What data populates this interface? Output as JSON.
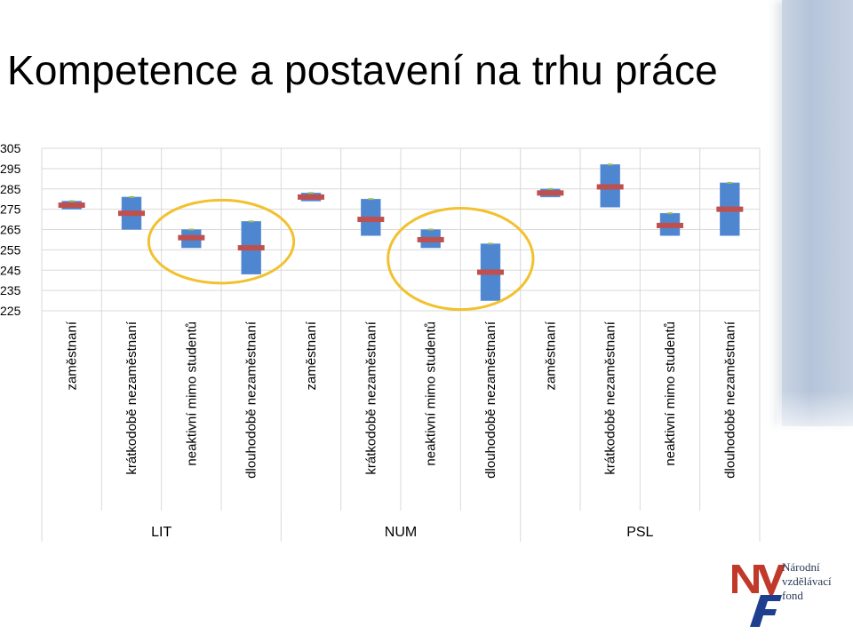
{
  "title": "Kompetence a postavení na trhu práce",
  "colors": {
    "bar": "#4f86d0",
    "bar_edge": "#6d9ade",
    "median": "#c0504d",
    "marker": "#9bbb59",
    "circle": "#f2c12e",
    "grid": "#d9d9d9",
    "logo_red": "#c0392b",
    "logo_blue": "#1e3f8f"
  },
  "chart_data": {
    "type": "bar",
    "subtype": "floating-range-with-median",
    "title": "Kompetence a postavení na trhu práce",
    "xlabel": "",
    "ylabel": "",
    "ylim": [
      225,
      305
    ],
    "yticks": [
      305,
      295,
      285,
      275,
      265,
      255,
      245,
      235,
      225
    ],
    "grid": true,
    "legend": "none",
    "groups": [
      {
        "name": "LIT",
        "categories": [
          "zaměstnaní",
          "krátkodobě nezaměstnaní",
          "neaktivní mimo studentů",
          "dlouhodobě nezaměstnaní"
        ],
        "low": [
          275,
          265,
          256,
          243
        ],
        "high": [
          279,
          281,
          265,
          269
        ],
        "median": [
          277,
          273,
          261,
          256
        ]
      },
      {
        "name": "NUM",
        "categories": [
          "zaměstnaní",
          "krátkodobě nezaměstnaní",
          "neaktivní mimo studentů",
          "dlouhodobě nezaměstnaní"
        ],
        "low": [
          279,
          262,
          256,
          230
        ],
        "high": [
          283,
          280,
          265,
          258
        ],
        "median": [
          281,
          270,
          260,
          244
        ]
      },
      {
        "name": "PSL",
        "categories": [
          "zaměstnaní",
          "krátkodobě nezaměstnaní",
          "neaktivní mimo studentů",
          "dlouhodobě nezaměstnaní"
        ],
        "low": [
          281,
          276,
          262,
          262
        ],
        "high": [
          285,
          297,
          273,
          288
        ],
        "median": [
          283,
          286,
          267,
          275
        ]
      }
    ],
    "highlighted": [
      {
        "group": "LIT",
        "categories": [
          "neaktivní mimo studentů",
          "dlouhodobě nezaměstnaní"
        ]
      },
      {
        "group": "NUM",
        "categories": [
          "neaktivní mimo studentů",
          "dlouhodobě nezaměstnaní"
        ]
      }
    ]
  },
  "logo": {
    "line1": "Národní",
    "line2": "vzdělávací",
    "line3": "fond"
  }
}
